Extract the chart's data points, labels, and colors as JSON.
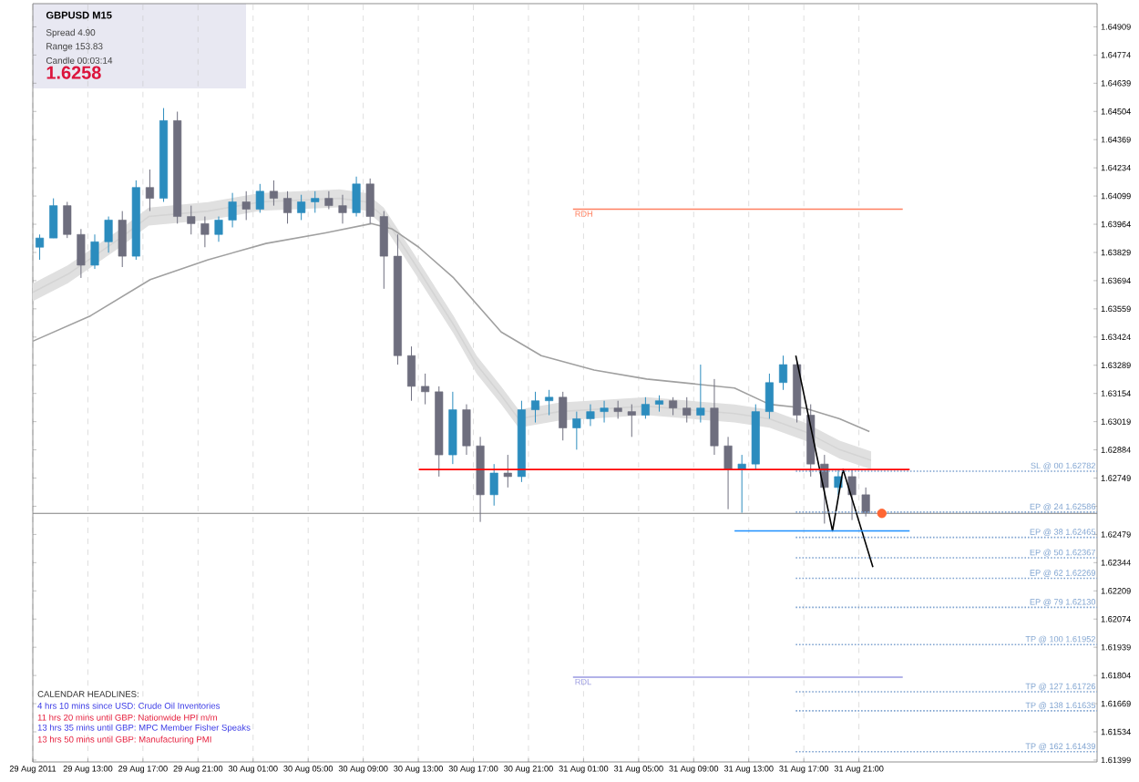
{
  "chart_data": {
    "type": "candlestick",
    "title": "GBPUSD  M15",
    "annotations": [
      "Spread  4.90",
      "Range  153.83",
      "Candle  00:03:14",
      "1.6258",
      "CALENDAR HEADLINES:",
      "4 hrs 10 mins since USD: Crude Oil Inventories",
      "11 hrs 20 mins until GBP: Nationwide HPI m/m",
      "13 hrs 35 mins until GBP: MPC Member Fisher Speaks",
      "13 hrs 50 mins until GBP: Manufacturing PMI"
    ],
    "x": [
      "2011-08-29T09:30",
      "2011-08-29T10:30",
      "2011-08-29T11:30",
      "2011-08-29T12:30",
      "2011-08-29T13:30",
      "2011-08-29T14:30",
      "2011-08-29T15:30",
      "2011-08-29T16:30",
      "2011-08-29T17:30",
      "2011-08-29T18:30",
      "2011-08-29T19:30",
      "2011-08-29T20:30",
      "2011-08-29T21:30",
      "2011-08-29T22:30",
      "2011-08-29T23:30",
      "2011-08-30T00:30",
      "2011-08-30T01:30",
      "2011-08-30T02:30",
      "2011-08-30T03:30",
      "2011-08-30T04:30",
      "2011-08-30T05:30",
      "2011-08-30T06:30",
      "2011-08-30T07:30",
      "2011-08-30T08:30",
      "2011-08-30T09:30",
      "2011-08-30T10:30",
      "2011-08-30T11:30",
      "2011-08-30T12:30",
      "2011-08-30T13:30",
      "2011-08-30T14:30",
      "2011-08-30T15:30",
      "2011-08-30T16:30",
      "2011-08-30T17:30",
      "2011-08-30T18:30",
      "2011-08-30T19:30",
      "2011-08-30T20:30",
      "2011-08-30T21:30",
      "2011-08-30T22:30",
      "2011-08-30T23:30",
      "2011-08-31T00:30",
      "2011-08-31T01:30",
      "2011-08-31T02:30",
      "2011-08-31T03:30",
      "2011-08-31T04:30",
      "2011-08-31T05:30",
      "2011-08-31T06:30",
      "2011-08-31T07:30",
      "2011-08-31T08:30",
      "2011-08-31T09:30",
      "2011-08-31T10:30",
      "2011-08-31T11:30",
      "2011-08-31T12:30",
      "2011-08-31T13:30",
      "2011-08-31T14:30",
      "2011-08-31T15:30",
      "2011-08-31T16:30",
      "2011-08-31T17:30",
      "2011-08-31T18:30",
      "2011-08-31T19:30",
      "2011-08-31T20:30",
      "2011-08-31T21:30"
    ],
    "ohlc": [
      [
        1.63854,
        1.63915,
        1.63794,
        1.63898
      ],
      [
        1.63898,
        1.64088,
        1.63898,
        1.64053
      ],
      [
        1.64053,
        1.64071,
        1.63898,
        1.63915
      ],
      [
        1.63915,
        1.63941,
        1.63707,
        1.63768
      ],
      [
        1.63768,
        1.63915,
        1.6375,
        1.6388
      ],
      [
        1.6388,
        1.64001,
        1.63828,
        1.63984
      ],
      [
        1.63984,
        1.64027,
        1.63759,
        1.63811
      ],
      [
        1.63811,
        1.64174,
        1.63794,
        1.6414
      ],
      [
        1.6414,
        1.64226,
        1.64027,
        1.64088
      ],
      [
        1.64088,
        1.6452,
        1.64071,
        1.6446
      ],
      [
        1.6446,
        1.64503,
        1.63967,
        1.64001
      ],
      [
        1.64001,
        1.64053,
        1.63915,
        1.63967
      ],
      [
        1.63967,
        1.64001,
        1.63854,
        1.63915
      ],
      [
        1.63915,
        1.64001,
        1.6388,
        1.63984
      ],
      [
        1.63984,
        1.64114,
        1.63949,
        1.64071
      ],
      [
        1.64071,
        1.64122,
        1.63984,
        1.64036
      ],
      [
        1.64036,
        1.64157,
        1.64019,
        1.64122
      ],
      [
        1.64122,
        1.64174,
        1.64053,
        1.64088
      ],
      [
        1.64088,
        1.64122,
        1.63967,
        1.64019
      ],
      [
        1.64019,
        1.64105,
        1.63984,
        1.64071
      ],
      [
        1.64071,
        1.64122,
        1.64019,
        1.64088
      ],
      [
        1.64088,
        1.64122,
        1.64036,
        1.64053
      ],
      [
        1.64053,
        1.64105,
        1.63967,
        1.64019
      ],
      [
        1.64019,
        1.64192,
        1.64001,
        1.64157
      ],
      [
        1.64157,
        1.64183,
        1.63967,
        1.64001
      ],
      [
        1.64001,
        1.64027,
        1.63655,
        1.63811
      ],
      [
        1.63811,
        1.63915,
        1.63292,
        1.63335
      ],
      [
        1.63335,
        1.63379,
        1.63119,
        1.63188
      ],
      [
        1.63188,
        1.63249,
        1.63102,
        1.63162
      ],
      [
        1.63162,
        1.63188,
        1.62756,
        1.6286
      ],
      [
        1.6286,
        1.63162,
        1.62816,
        1.63076
      ],
      [
        1.63076,
        1.63102,
        1.6286,
        1.62903
      ],
      [
        1.62903,
        1.62946,
        1.62539,
        1.62669
      ],
      [
        1.62669,
        1.62816,
        1.62617,
        1.62773
      ],
      [
        1.62773,
        1.6286,
        1.62704,
        1.62756
      ],
      [
        1.62756,
        1.63119,
        1.6273,
        1.63076
      ],
      [
        1.63076,
        1.63162,
        1.63015,
        1.63119
      ],
      [
        1.63119,
        1.63171,
        1.6305,
        1.63136
      ],
      [
        1.63136,
        1.63162,
        1.62929,
        1.62989
      ],
      [
        1.62989,
        1.63067,
        1.62885,
        1.63033
      ],
      [
        1.63033,
        1.63102,
        1.62998,
        1.63067
      ],
      [
        1.63067,
        1.63119,
        1.63015,
        1.63084
      ],
      [
        1.63084,
        1.63119,
        1.63033,
        1.63067
      ],
      [
        1.63067,
        1.63102,
        1.62946,
        1.6305
      ],
      [
        1.6305,
        1.63136,
        1.63033,
        1.63102
      ],
      [
        1.63102,
        1.63145,
        1.63067,
        1.63119
      ],
      [
        1.63119,
        1.63136,
        1.6305,
        1.63084
      ],
      [
        1.63084,
        1.63136,
        1.63015,
        1.6305
      ],
      [
        1.6305,
        1.63292,
        1.63015,
        1.63084
      ],
      [
        1.63084,
        1.63223,
        1.6286,
        1.62903
      ],
      [
        1.62903,
        1.62946,
        1.626,
        1.6279
      ],
      [
        1.6279,
        1.6286,
        1.62583,
        1.62816
      ],
      [
        1.62816,
        1.63102,
        1.6279,
        1.63067
      ],
      [
        1.63067,
        1.63249,
        1.63033,
        1.63206
      ],
      [
        1.63206,
        1.63335,
        1.63171,
        1.63292
      ],
      [
        1.63292,
        1.63309,
        1.63015,
        1.6305
      ],
      [
        1.6305,
        1.63102,
        1.62756,
        1.62816
      ],
      [
        1.62816,
        1.6286,
        1.62531,
        1.62704
      ],
      [
        1.62704,
        1.6279,
        1.62669,
        1.62756
      ],
      [
        1.62756,
        1.6279,
        1.62548,
        1.62669
      ],
      [
        1.62669,
        1.62704,
        1.62565,
        1.62583
      ]
    ],
    "colors": [
      "#2b8cbe",
      "#2b8cbe",
      "#6e6e7e",
      "#6e6e7e",
      "#2b8cbe",
      "#2b8cbe",
      "#6e6e7e",
      "#2b8cbe",
      "#6e6e7e",
      "#2b8cbe",
      "#6e6e7e",
      "#6e6e7e",
      "#6e6e7e",
      "#2b8cbe",
      "#2b8cbe",
      "#6e6e7e",
      "#2b8cbe",
      "#6e6e7e",
      "#6e6e7e",
      "#2b8cbe",
      "#2b8cbe",
      "#6e6e7e",
      "#6e6e7e",
      "#2b8cbe",
      "#6e6e7e",
      "#6e6e7e",
      "#6e6e7e",
      "#6e6e7e",
      "#6e6e7e",
      "#6e6e7e",
      "#2b8cbe",
      "#6e6e7e",
      "#6e6e7e",
      "#2b8cbe",
      "#6e6e7e",
      "#2b8cbe",
      "#2b8cbe",
      "#2b8cbe",
      "#6e6e7e",
      "#2b8cbe",
      "#2b8cbe",
      "#2b8cbe",
      "#6e6e7e",
      "#6e6e7e",
      "#2b8cbe",
      "#2b8cbe",
      "#6e6e7e",
      "#6e6e7e",
      "#2b8cbe",
      "#6e6e7e",
      "#6e6e7e",
      "#2b8cbe",
      "#2b8cbe",
      "#2b8cbe",
      "#2b8cbe",
      "#6e6e7e",
      "#6e6e7e",
      "#6e6e7e",
      "#2b8cbe",
      "#6e6e7e",
      "#6e6e7e"
    ],
    "series": [
      {
        "type": "line",
        "color": "#d4d4d4",
        "x": [
          "2011-08-29T09:00",
          "2011-08-29T11:33",
          "2011-08-29T15:22",
          "2011-08-29T17:25",
          "2011-08-29T21:44",
          "2011-08-30T01:34",
          "2011-08-30T07:17",
          "2011-08-30T09:12",
          "2011-08-30T10:29",
          "2011-08-30T12:38",
          "2011-08-30T15:34",
          "2011-08-30T17:14",
          "2011-08-30T19:01",
          "2011-08-30T20:17",
          "2011-08-30T23:13",
          "2011-08-31T05:35",
          "2011-08-31T11:58",
          "2011-08-31T14:30",
          "2011-08-31T17:03",
          "2011-08-31T19:36",
          "2011-08-31T21:53"
        ],
        "values": [
          1.63638,
          1.63725,
          1.63898,
          1.64001,
          1.64027,
          1.64071,
          1.64088,
          1.64071,
          1.64001,
          1.63785,
          1.63482,
          1.63292,
          1.63145,
          1.63033,
          1.63067,
          1.63093,
          1.63058,
          1.63033,
          1.62972,
          1.62885,
          1.62834
        ],
        "lower": [
          1.63595,
          1.63682,
          1.63855,
          1.63958,
          1.63984,
          1.64028,
          1.64045,
          1.64028,
          1.63958,
          1.63742,
          1.63439,
          1.63249,
          1.63102,
          1.6299,
          1.63024,
          1.6305,
          1.63015,
          1.6299,
          1.62929,
          1.62842,
          1.62791
        ],
        "upper": [
          1.63681,
          1.63768,
          1.63941,
          1.64044,
          1.6407,
          1.64114,
          1.64131,
          1.64114,
          1.64044,
          1.63828,
          1.63525,
          1.63335,
          1.63188,
          1.63076,
          1.6311,
          1.63136,
          1.63101,
          1.63076,
          1.63015,
          1.62928,
          1.62877
        ]
      },
      {
        "type": "line",
        "color": "#a0a0a0",
        "x": [
          "2011-08-29T09:00",
          "2011-08-29T13:12",
          "2011-08-29T17:32",
          "2011-08-29T21:44",
          "2011-08-30T01:56",
          "2011-08-30T06:16",
          "2011-08-30T09:35",
          "2011-08-30T11:07",
          "2011-08-30T13:02",
          "2011-08-30T15:34",
          "2011-08-30T19:01",
          "2011-08-30T21:56",
          "2011-08-31T01:46",
          "2011-08-31T05:35",
          "2011-08-31T11:58",
          "2011-08-31T14:30",
          "2011-08-31T17:03",
          "2011-08-31T19:36",
          "2011-08-31T21:46"
        ],
        "values": [
          1.63404,
          1.63526,
          1.63699,
          1.63794,
          1.63872,
          1.63923,
          1.63967,
          1.63941,
          1.63854,
          1.63707,
          1.63448,
          1.63335,
          1.63266,
          1.63223,
          1.6318,
          1.63102,
          1.63084,
          1.63033,
          1.62972
        ]
      },
      {
        "type": "line",
        "color": "#000000",
        "x": [
          "2011-08-31T16:25",
          "2011-08-31T19:05",
          "2011-08-31T19:51",
          "2011-08-31T22:01"
        ],
        "values": [
          1.63335,
          1.62496,
          1.6279,
          1.62323
        ]
      },
      {
        "type": "line",
        "name": "RDH",
        "color": "#ff8060",
        "x": [
          "2011-08-31T00:14",
          "2011-09-01T00:11"
        ],
        "values": [
          1.64036,
          1.64036
        ]
      },
      {
        "type": "line",
        "name": "RDL",
        "color": "#9999e0",
        "x": [
          "2011-08-31T00:14",
          "2011-09-01T00:11"
        ],
        "values": [
          1.61796,
          1.61796
        ]
      },
      {
        "type": "line",
        "color": "#ff0000",
        "x": [
          "2011-08-30T13:02",
          "2011-09-01T00:41"
        ],
        "values": [
          1.6279,
          1.6279
        ]
      },
      {
        "type": "line",
        "color": "#1e90ff",
        "x": [
          "2011-08-31T11:58",
          "2011-09-01T00:41"
        ],
        "values": [
          1.62496,
          1.62496
        ]
      },
      {
        "type": "line",
        "name": "SL @ 00   1.62782",
        "color": "#7fa3d0",
        "line_style": "dotted",
        "x": [
          "2011-08-31T16:25",
          "2011-09-01T14:18"
        ],
        "values": [
          1.62782,
          1.62782
        ]
      },
      {
        "type": "line",
        "name": "EP @ 24   1.62586",
        "color": "#7fa3d0",
        "line_style": "dotted",
        "x": [
          "2011-08-31T16:25",
          "2011-09-01T14:18"
        ],
        "values": [
          1.62586,
          1.62586
        ]
      },
      {
        "type": "line",
        "name": "EP @ 38   1.62465",
        "color": "#7fa3d0",
        "line_style": "dotted",
        "x": [
          "2011-08-31T16:25",
          "2011-09-01T14:18"
        ],
        "values": [
          1.62465,
          1.62465
        ]
      },
      {
        "type": "line",
        "name": "EP @ 50   1.62367",
        "color": "#7fa3d0",
        "line_style": "dotted",
        "x": [
          "2011-08-31T16:25",
          "2011-09-01T14:18"
        ],
        "values": [
          1.62367,
          1.62367
        ]
      },
      {
        "type": "line",
        "name": "EP @ 62   1.62269",
        "color": "#7fa3d0",
        "line_style": "dotted",
        "x": [
          "2011-08-31T16:25",
          "2011-09-01T14:18"
        ],
        "values": [
          1.62269,
          1.62269
        ]
      },
      {
        "type": "line",
        "name": "EP @ 79   1.62130",
        "color": "#7fa3d0",
        "line_style": "dotted",
        "x": [
          "2011-08-31T16:25",
          "2011-09-01T14:18"
        ],
        "values": [
          1.6213,
          1.6213
        ]
      },
      {
        "type": "line",
        "name": "TP @ 100   1.61952",
        "color": "#7fa3d0",
        "line_style": "dotted",
        "x": [
          "2011-08-31T16:25",
          "2011-09-01T14:18"
        ],
        "values": [
          1.61952,
          1.61952
        ]
      },
      {
        "type": "line",
        "name": "TP @ 127   1.61726",
        "color": "#7fa3d0",
        "line_style": "dotted",
        "x": [
          "2011-08-31T16:25",
          "2011-09-01T14:18"
        ],
        "values": [
          1.61726,
          1.61726
        ]
      },
      {
        "type": "line",
        "name": "TP @ 138   1.61635",
        "color": "#7fa3d0",
        "line_style": "dotted",
        "x": [
          "2011-08-31T16:25",
          "2011-09-01T14:18"
        ],
        "values": [
          1.61635,
          1.61635
        ]
      },
      {
        "type": "line",
        "name": "TP @ 162   1.61439",
        "color": "#7fa3d0",
        "line_style": "dotted",
        "x": [
          "2011-08-31T16:25",
          "2011-09-01T14:18"
        ],
        "values": [
          1.61439,
          1.61439
        ]
      },
      {
        "type": "scatter",
        "color": "#ff6633",
        "x": [
          "2011-08-31T22:40"
        ],
        "values": [
          1.6258
        ]
      }
    ],
    "ref_lines": [
      {
        "axis": "y",
        "value": 1.6258,
        "color": "#808080"
      }
    ],
    "xlim": [
      "2011-08-29T09:00",
      "2011-09-01T14:18"
    ],
    "ylim": [
      1.6139,
      1.6502
    ],
    "xticks": [
      {
        "value": "2011-08-29T09:00",
        "label": "29 Aug 2011"
      },
      {
        "value": "2011-08-29T13:00",
        "label": "29 Aug 13:00"
      },
      {
        "value": "2011-08-29T17:00",
        "label": "29 Aug 17:00"
      },
      {
        "value": "2011-08-29T21:00",
        "label": "29 Aug 21:00"
      },
      {
        "value": "2011-08-30T01:00",
        "label": "30 Aug 01:00"
      },
      {
        "value": "2011-08-30T05:00",
        "label": "30 Aug 05:00"
      },
      {
        "value": "2011-08-30T09:00",
        "label": "30 Aug 09:00"
      },
      {
        "value": "2011-08-30T13:00",
        "label": "30 Aug 13:00"
      },
      {
        "value": "2011-08-30T17:00",
        "label": "30 Aug 17:00"
      },
      {
        "value": "2011-08-30T21:00",
        "label": "30 Aug 21:00"
      },
      {
        "value": "2011-08-31T01:00",
        "label": "31 Aug 01:00"
      },
      {
        "value": "2011-08-31T05:00",
        "label": "31 Aug 05:00"
      },
      {
        "value": "2011-08-31T09:00",
        "label": "31 Aug 09:00"
      },
      {
        "value": "2011-08-31T13:00",
        "label": "31 Aug 13:00"
      },
      {
        "value": "2011-08-31T17:00",
        "label": "31 Aug 17:00"
      },
      {
        "value": "2011-08-31T21:00",
        "label": "31 Aug 21:00"
      }
    ],
    "yticks": [
      1.64909,
      1.64774,
      1.64639,
      1.64504,
      1.64369,
      1.64234,
      1.64099,
      1.63964,
      1.63829,
      1.63694,
      1.63559,
      1.63424,
      1.63289,
      1.63154,
      1.63019,
      1.62884,
      1.62749,
      {
        "value": 1.62614,
        "label": null
      },
      1.62479,
      1.62344,
      1.62209,
      1.62074,
      1.61939,
      1.61804,
      1.61669,
      1.61534,
      1.61399
    ],
    "grid": "x"
  }
}
